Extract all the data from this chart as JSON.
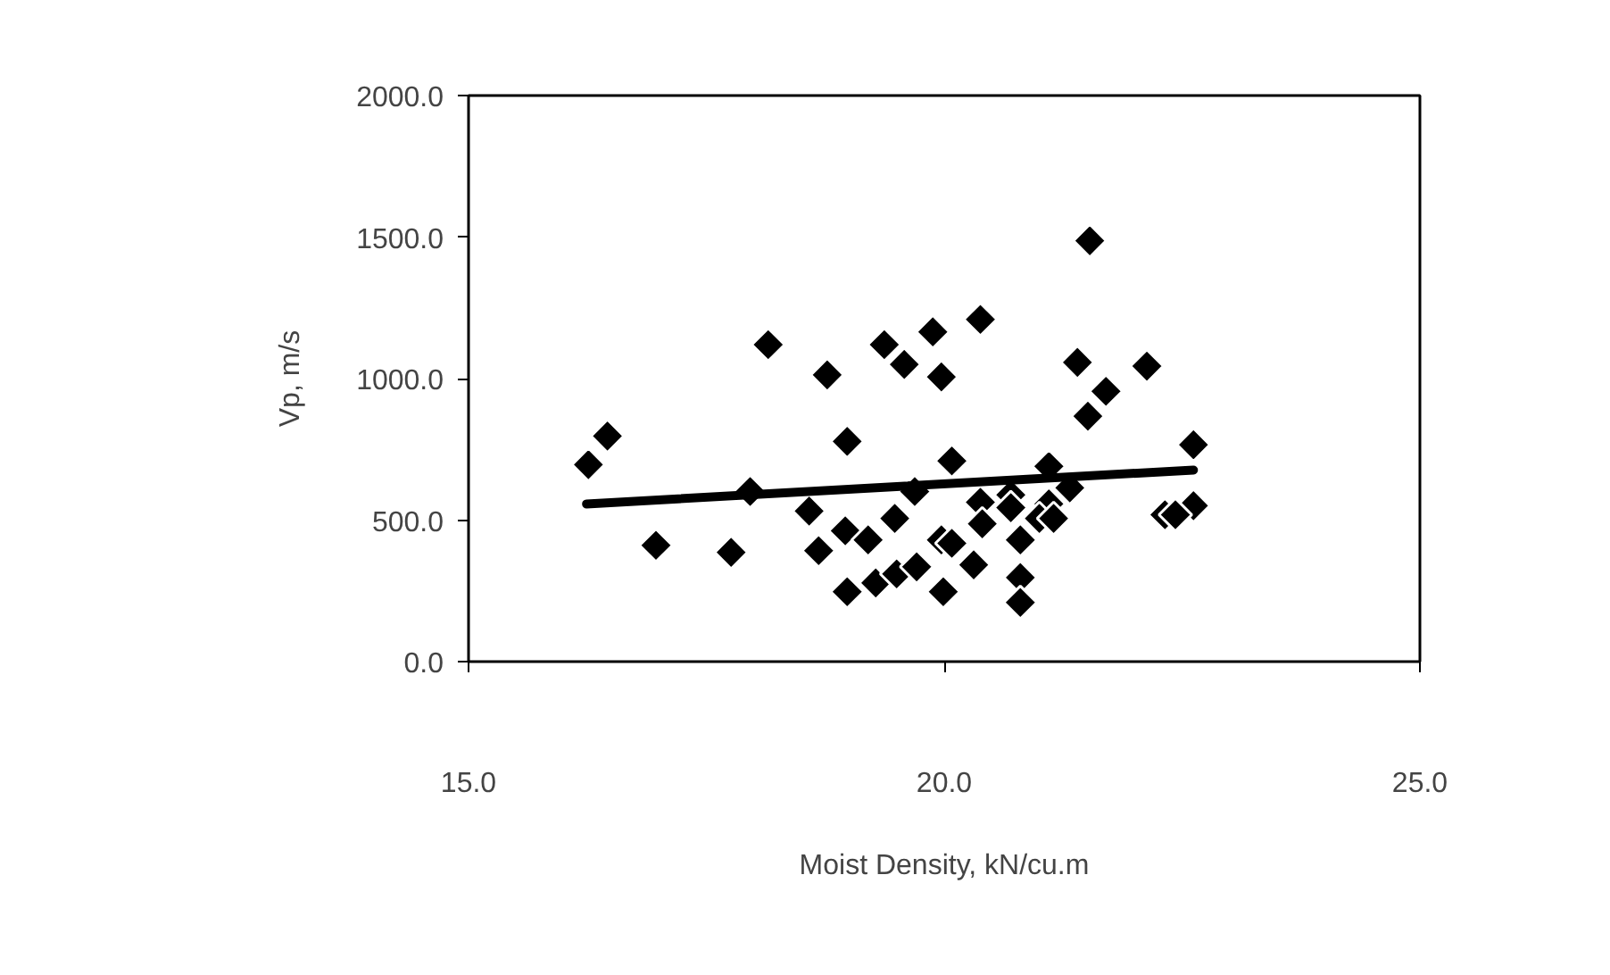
{
  "chart_data": {
    "type": "scatter",
    "xlabel": "Moist Density, kN/cu.m",
    "ylabel": "Vp, m/s",
    "xlim": [
      15,
      25
    ],
    "ylim": [
      0,
      2000
    ],
    "xticks": [
      {
        "value": 15,
        "label": "15.0"
      },
      {
        "value": 20,
        "label": "20.0"
      },
      {
        "value": 25,
        "label": "25.0"
      }
    ],
    "yticks": [
      {
        "value": 0,
        "label": "0.0"
      },
      {
        "value": 500,
        "label": "500.0"
      },
      {
        "value": 1000,
        "label": "1000.0"
      },
      {
        "value": 1500,
        "label": "1500.0"
      },
      {
        "value": 2000,
        "label": "2000.0"
      }
    ],
    "grid": false,
    "marker": "diamond",
    "series": [
      {
        "color": "#000000",
        "x": [
          16.26,
          16.46,
          16.97,
          17.76,
          17.96,
          18.15,
          18.77,
          18.98,
          18.58,
          18.68,
          18.96,
          19.2,
          19.48,
          18.98,
          19.28,
          19.5,
          19.71,
          19.37,
          19.58,
          19.88,
          19.97,
          19.97,
          21.53,
          20.38,
          21.4,
          22.13,
          21.7,
          21.51,
          20.08,
          22.62,
          21.1,
          19.69,
          21.32,
          20.38,
          20.7,
          20.7,
          21.1,
          21.0,
          21.15,
          22.62,
          22.32,
          22.43,
          20.4,
          20.8,
          20.08,
          20.31,
          19.99,
          20.8,
          20.8
        ],
        "values": [
          696,
          797,
          411,
          386,
          601,
          1120,
          1013,
          778,
          532,
          392,
          462,
          430,
          506,
          247,
          278,
          310,
          335,
          1120,
          1050,
          1165,
          1006,
          430,
          1487,
          1209,
          1057,
          1044,
          955,
          867,
          709,
          766,
          690,
          601,
          614,
          563,
          589,
          544,
          557,
          506,
          506,
          551,
          519,
          519,
          487,
          430,
          418,
          342,
          247,
          297,
          209
        ]
      },
      {
        "type": "line",
        "marker": "none",
        "color": "#000000",
        "x": [
          16.24,
          22.62
        ],
        "values": [
          557,
          677
        ]
      }
    ]
  }
}
